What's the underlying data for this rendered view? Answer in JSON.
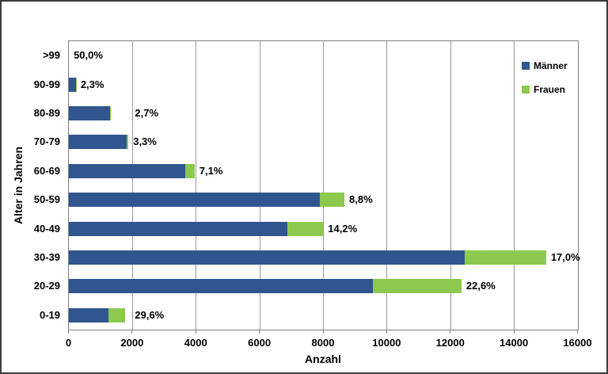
{
  "chart_data": {
    "type": "bar",
    "orientation": "horizontal",
    "stacked": true,
    "xlabel": "Anzahl",
    "ylabel": "Alter in Jahren",
    "xlim": [
      0,
      16000
    ],
    "xticks": [
      0,
      2000,
      4000,
      6000,
      8000,
      10000,
      12000,
      14000,
      16000
    ],
    "grid": true,
    "legend_position": "top-right",
    "categories": [
      ">99",
      "90-99",
      "80-89",
      "70-79",
      "60-69",
      "50-59",
      "40-49",
      "30-39",
      "20-29",
      "0-19"
    ],
    "series": [
      {
        "name": "Männer",
        "color": "#31568F",
        "values": [
          1,
          215,
          1295,
          1810,
          3670,
          7900,
          6860,
          12450,
          9550,
          1250
        ]
      },
      {
        "name": "Frauen",
        "color": "#8CC94E",
        "values": [
          1,
          5,
          36,
          62,
          280,
          760,
          1135,
          2550,
          2790,
          525
        ]
      }
    ],
    "bar_labels": [
      "50,0%",
      "2,3%",
      "2,7%",
      "3,3%",
      "7,1%",
      "8,8%",
      "14,2%",
      "17,0%",
      "22,6%",
      "29,6%"
    ]
  },
  "colors": {
    "grid": "#9B9B9B",
    "plot_border": "#7F7F7F",
    "frame_border": "#3B3B3B",
    "label_text": "#000000"
  }
}
